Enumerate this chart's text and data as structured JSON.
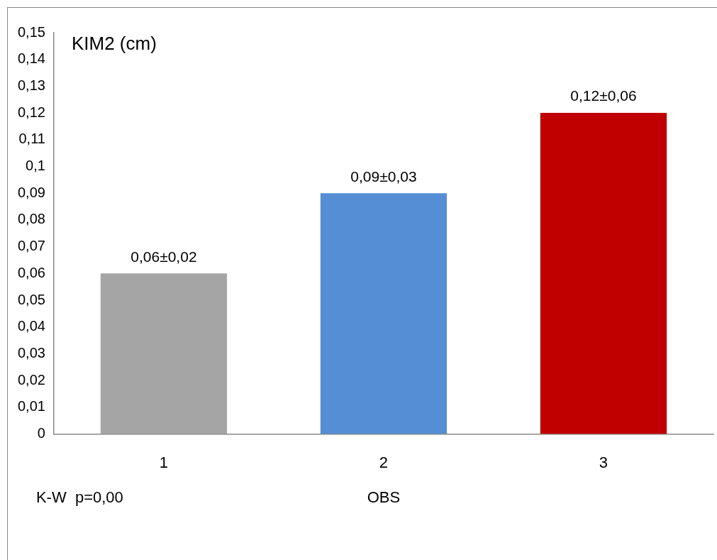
{
  "chart_data": {
    "type": "bar",
    "title": "KIM2 (cm)",
    "xlabel": "OBS",
    "categories": [
      "1",
      "2",
      "3"
    ],
    "values": [
      0.06,
      0.09,
      0.12
    ],
    "colors": [
      "#a5a5a5",
      "#558ed5",
      "#c00000"
    ],
    "value_labels": [
      "0,06±0,02",
      "0,09±0,03",
      "0,12±0,06"
    ],
    "ylim": [
      0,
      0.15
    ],
    "yticks": [
      0,
      {
        "value": 0.01,
        "label": "0,01"
      },
      {
        "value": 0.02,
        "label": "0,02"
      },
      {
        "value": 0.03,
        "label": "0,03"
      },
      {
        "value": 0.04,
        "label": "0,04"
      },
      {
        "value": 0.05,
        "label": "0,05"
      },
      {
        "value": 0.06,
        "label": "0,06"
      },
      {
        "value": 0.07,
        "label": "0,07"
      },
      {
        "value": 0.08,
        "label": "0,08"
      },
      {
        "value": 0.09,
        "label": "0,09"
      },
      {
        "value": 0.1,
        "label": "0,1"
      },
      {
        "value": 0.11,
        "label": "0,11"
      },
      {
        "value": 0.12,
        "label": "0,12"
      },
      {
        "value": 0.13,
        "label": "0,13"
      },
      {
        "value": 0.14,
        "label": "0,14"
      },
      {
        "value": 0.15,
        "label": "0,15"
      }
    ],
    "grid": false,
    "legend": false,
    "annotations": [
      "K-W  p=0,00"
    ]
  }
}
